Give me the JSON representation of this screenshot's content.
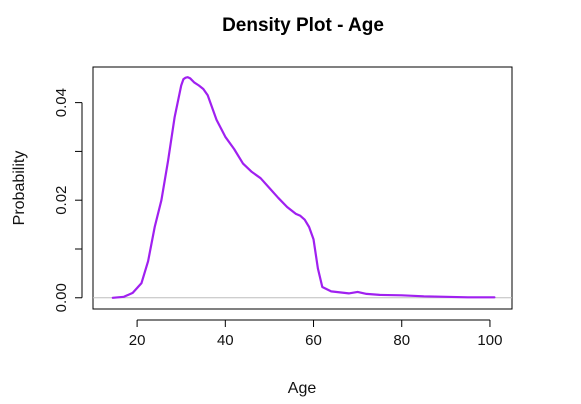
{
  "chart_data": {
    "type": "line",
    "title": "Density Plot - Age",
    "xlabel": "Age",
    "ylabel": "Probability",
    "xlim": [
      10,
      105
    ],
    "ylim": [
      -0.0023,
      0.0473
    ],
    "x_ticks": [
      "20",
      "40",
      "60",
      "80",
      "100"
    ],
    "y_ticks": [
      "0.00",
      "0.02",
      "0.04"
    ],
    "line_color": "#a020f0",
    "baseline_color": "#bebebe",
    "grid": false,
    "legend": "none",
    "series": [
      {
        "x": [
          14.5,
          17,
          19,
          21,
          22.5,
          24,
          25.5,
          27,
          28.5,
          30,
          30.5,
          31,
          31.5,
          32,
          33,
          34,
          35,
          36,
          37,
          38,
          40,
          42,
          44,
          46,
          48,
          50,
          52,
          54,
          56,
          57,
          58,
          59,
          60,
          61,
          62,
          64,
          66,
          68,
          70,
          72,
          75,
          80,
          85,
          90,
          95,
          101
        ],
        "y": [
          0.0,
          0.0002,
          0.001,
          0.003,
          0.0075,
          0.0145,
          0.02,
          0.028,
          0.037,
          0.0435,
          0.0448,
          0.0451,
          0.0452,
          0.045,
          0.0441,
          0.0435,
          0.0428,
          0.0415,
          0.039,
          0.0365,
          0.033,
          0.0305,
          0.0275,
          0.0258,
          0.0245,
          0.0225,
          0.0205,
          0.0186,
          0.0172,
          0.0168,
          0.016,
          0.0145,
          0.012,
          0.006,
          0.0022,
          0.0013,
          0.0011,
          0.0009,
          0.0012,
          0.0008,
          0.0006,
          0.0005,
          0.0003,
          0.0002,
          0.0001,
          0.0001
        ]
      }
    ]
  }
}
